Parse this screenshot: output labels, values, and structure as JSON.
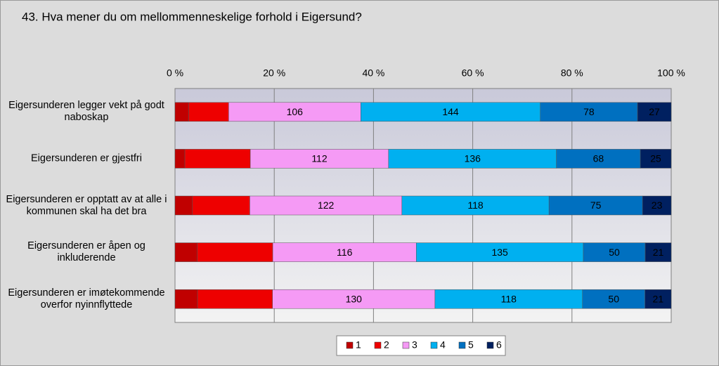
{
  "chart_data": {
    "type": "bar",
    "orientation": "horizontal",
    "stacked": "percent",
    "title": "43. Hva mener du om mellommenneskelige forhold i Eigersund?",
    "categories": [
      "Eigersunderen legger vekt på godt naboskap",
      "Eigersunderen er gjestfri",
      "Eigersunderen er opptatt av at alle i kommunen skal ha det bra",
      "Eigersunderen er åpen og inkluderende",
      "Eigersunderen er imøtekommende overfor nyinnflyttede"
    ],
    "series": [
      {
        "name": "1",
        "color": "#c00000",
        "values": [
          11,
          8,
          14,
          18,
          18
        ]
      },
      {
        "name": "2",
        "color": "#ee0000",
        "values": [
          32,
          53,
          46,
          61,
          60
        ]
      },
      {
        "name": "3",
        "color": "#f59af5",
        "values": [
          106,
          112,
          122,
          116,
          130
        ],
        "data_labels": true
      },
      {
        "name": "4",
        "color": "#00b0f0",
        "values": [
          144,
          136,
          118,
          135,
          118
        ],
        "data_labels": true
      },
      {
        "name": "5",
        "color": "#0070c0",
        "values": [
          78,
          68,
          75,
          50,
          50
        ],
        "data_labels": true
      },
      {
        "name": "6",
        "color": "#002060",
        "values": [
          27,
          25,
          23,
          21,
          21
        ],
        "data_labels": true
      }
    ],
    "xlim": [
      0,
      100
    ],
    "xticks": [
      {
        "value": 0,
        "label": "0 %"
      },
      {
        "value": 20,
        "label": "20 %"
      },
      {
        "value": 40,
        "label": "40 %"
      },
      {
        "value": 60,
        "label": "60 %"
      },
      {
        "value": 80,
        "label": "80 %"
      },
      {
        "value": 100,
        "label": "100 %"
      }
    ],
    "grid": true,
    "legend": "bottom"
  }
}
